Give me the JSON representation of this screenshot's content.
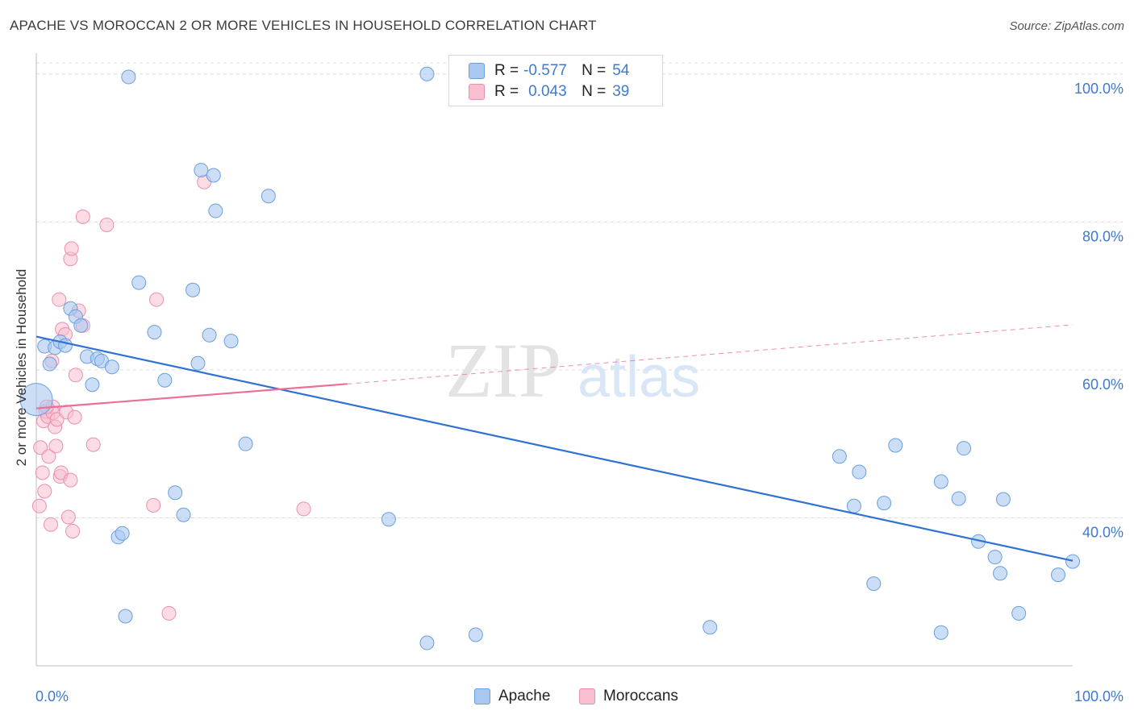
{
  "title": "APACHE VS MOROCCAN 2 OR MORE VEHICLES IN HOUSEHOLD CORRELATION CHART",
  "source": "Source: ZipAtlas.com",
  "watermark": {
    "zip": "ZIP",
    "atlas": "atlas"
  },
  "legend": {
    "rows": [
      {
        "r_label": "R =",
        "r_value": "-0.577",
        "n_label": "N =",
        "n_value": "54"
      },
      {
        "r_label": "R =",
        "r_value": "0.043",
        "n_label": "N =",
        "n_value": "39"
      }
    ],
    "series_labels": [
      "Apache",
      "Moroccans"
    ]
  },
  "colors": {
    "apache_fill": "#a9c8f0",
    "apache_stroke": "#6a9fe0",
    "apache_line": "#2f72d2",
    "moroccan_fill": "#f8bfd0",
    "moroccan_stroke": "#ec8fae",
    "moroccan_line": "#e8709a",
    "tick_label": "#3f7ad0",
    "grid": "#dcdcdc"
  },
  "chart_data": {
    "type": "scatter",
    "title": "APACHE VS MOROCCAN 2 OR MORE VEHICLES IN HOUSEHOLD CORRELATION CHART",
    "xlabel": "",
    "ylabel": "2 or more Vehicles in Household",
    "xlim": [
      0,
      100
    ],
    "ylim": [
      20,
      101.5
    ],
    "x_tick_labels": [
      "0.0%",
      "100.0%"
    ],
    "y_ticks": [
      40,
      60,
      80,
      100
    ],
    "y_tick_labels": [
      "40.0%",
      "60.0%",
      "80.0%",
      "100.0%"
    ],
    "grid": true,
    "legend_position": "top-center",
    "series": [
      {
        "name": "Apache",
        "r": -0.577,
        "n": 54,
        "trend": {
          "x": [
            0,
            100
          ],
          "y": [
            64.5,
            34.2
          ],
          "dashed_extension": false
        },
        "points": [
          {
            "x": 0.0,
            "y": 56.0,
            "big": true
          },
          {
            "x": 0.8,
            "y": 63.2
          },
          {
            "x": 1.3,
            "y": 60.8
          },
          {
            "x": 1.8,
            "y": 63.0
          },
          {
            "x": 2.3,
            "y": 63.8
          },
          {
            "x": 2.8,
            "y": 63.3
          },
          {
            "x": 3.3,
            "y": 68.3
          },
          {
            "x": 3.8,
            "y": 67.2
          },
          {
            "x": 4.3,
            "y": 66.0
          },
          {
            "x": 4.9,
            "y": 61.8
          },
          {
            "x": 5.4,
            "y": 58.0
          },
          {
            "x": 5.9,
            "y": 61.5
          },
          {
            "x": 6.3,
            "y": 61.2
          },
          {
            "x": 7.3,
            "y": 60.4
          },
          {
            "x": 8.6,
            "y": 26.7
          },
          {
            "x": 7.9,
            "y": 37.4
          },
          {
            "x": 8.3,
            "y": 37.9
          },
          {
            "x": 8.9,
            "y": 99.6
          },
          {
            "x": 9.9,
            "y": 71.8
          },
          {
            "x": 11.4,
            "y": 65.1
          },
          {
            "x": 12.4,
            "y": 58.6
          },
          {
            "x": 13.4,
            "y": 43.4
          },
          {
            "x": 14.2,
            "y": 40.4
          },
          {
            "x": 15.1,
            "y": 70.8
          },
          {
            "x": 15.6,
            "y": 60.9
          },
          {
            "x": 15.9,
            "y": 87.0
          },
          {
            "x": 16.7,
            "y": 64.7
          },
          {
            "x": 17.1,
            "y": 86.3
          },
          {
            "x": 17.3,
            "y": 81.5
          },
          {
            "x": 18.8,
            "y": 63.9
          },
          {
            "x": 20.2,
            "y": 50.0
          },
          {
            "x": 22.4,
            "y": 83.5
          },
          {
            "x": 34.0,
            "y": 39.8
          },
          {
            "x": 37.7,
            "y": 100.0
          },
          {
            "x": 37.7,
            "y": 23.1
          },
          {
            "x": 42.4,
            "y": 24.2
          },
          {
            "x": 65.0,
            "y": 25.2
          },
          {
            "x": 77.5,
            "y": 48.3
          },
          {
            "x": 78.9,
            "y": 41.6
          },
          {
            "x": 79.4,
            "y": 46.2
          },
          {
            "x": 80.8,
            "y": 31.1
          },
          {
            "x": 81.8,
            "y": 42.0
          },
          {
            "x": 82.9,
            "y": 49.8
          },
          {
            "x": 87.3,
            "y": 44.9
          },
          {
            "x": 87.3,
            "y": 24.5
          },
          {
            "x": 89.0,
            "y": 42.6
          },
          {
            "x": 89.5,
            "y": 49.4
          },
          {
            "x": 90.9,
            "y": 36.8
          },
          {
            "x": 92.5,
            "y": 34.7
          },
          {
            "x": 93.0,
            "y": 32.5
          },
          {
            "x": 93.3,
            "y": 42.5
          },
          {
            "x": 94.8,
            "y": 27.1
          },
          {
            "x": 98.6,
            "y": 32.3
          },
          {
            "x": 100.0,
            "y": 34.1
          }
        ]
      },
      {
        "name": "Moroccans",
        "r": 0.043,
        "n": 39,
        "trend": {
          "x": [
            0,
            30
          ],
          "y": [
            54.8,
            58.1
          ],
          "dashed_to": {
            "x": 100,
            "y": 66.1
          }
        },
        "points": [
          {
            "x": 0.3,
            "y": 41.6
          },
          {
            "x": 0.4,
            "y": 49.5
          },
          {
            "x": 0.6,
            "y": 46.1
          },
          {
            "x": 0.7,
            "y": 53.1
          },
          {
            "x": 0.8,
            "y": 43.6
          },
          {
            "x": 0.9,
            "y": 54.4
          },
          {
            "x": 1.1,
            "y": 53.7
          },
          {
            "x": 1.2,
            "y": 48.3
          },
          {
            "x": 1.4,
            "y": 39.1
          },
          {
            "x": 1.5,
            "y": 61.2
          },
          {
            "x": 1.6,
            "y": 55.0
          },
          {
            "x": 1.6,
            "y": 54.2
          },
          {
            "x": 1.8,
            "y": 52.3
          },
          {
            "x": 1.9,
            "y": 49.7
          },
          {
            "x": 2.0,
            "y": 53.3
          },
          {
            "x": 2.2,
            "y": 69.5
          },
          {
            "x": 2.3,
            "y": 45.6
          },
          {
            "x": 2.4,
            "y": 46.1
          },
          {
            "x": 2.5,
            "y": 65.5
          },
          {
            "x": 2.8,
            "y": 64.8
          },
          {
            "x": 2.9,
            "y": 54.3
          },
          {
            "x": 3.1,
            "y": 40.1
          },
          {
            "x": 3.3,
            "y": 45.1
          },
          {
            "x": 3.3,
            "y": 75.0
          },
          {
            "x": 3.4,
            "y": 76.4
          },
          {
            "x": 3.5,
            "y": 38.2
          },
          {
            "x": 3.7,
            "y": 53.6
          },
          {
            "x": 3.8,
            "y": 59.3
          },
          {
            "x": 4.1,
            "y": 68.0
          },
          {
            "x": 4.5,
            "y": 66.0
          },
          {
            "x": 4.5,
            "y": 80.7
          },
          {
            "x": 5.5,
            "y": 49.9
          },
          {
            "x": 6.8,
            "y": 79.6
          },
          {
            "x": 11.3,
            "y": 41.7
          },
          {
            "x": 11.6,
            "y": 69.5
          },
          {
            "x": 12.8,
            "y": 27.1
          },
          {
            "x": 16.2,
            "y": 85.4
          },
          {
            "x": 25.8,
            "y": 41.2
          },
          {
            "x": 1.0,
            "y": 55.0
          }
        ]
      }
    ]
  }
}
